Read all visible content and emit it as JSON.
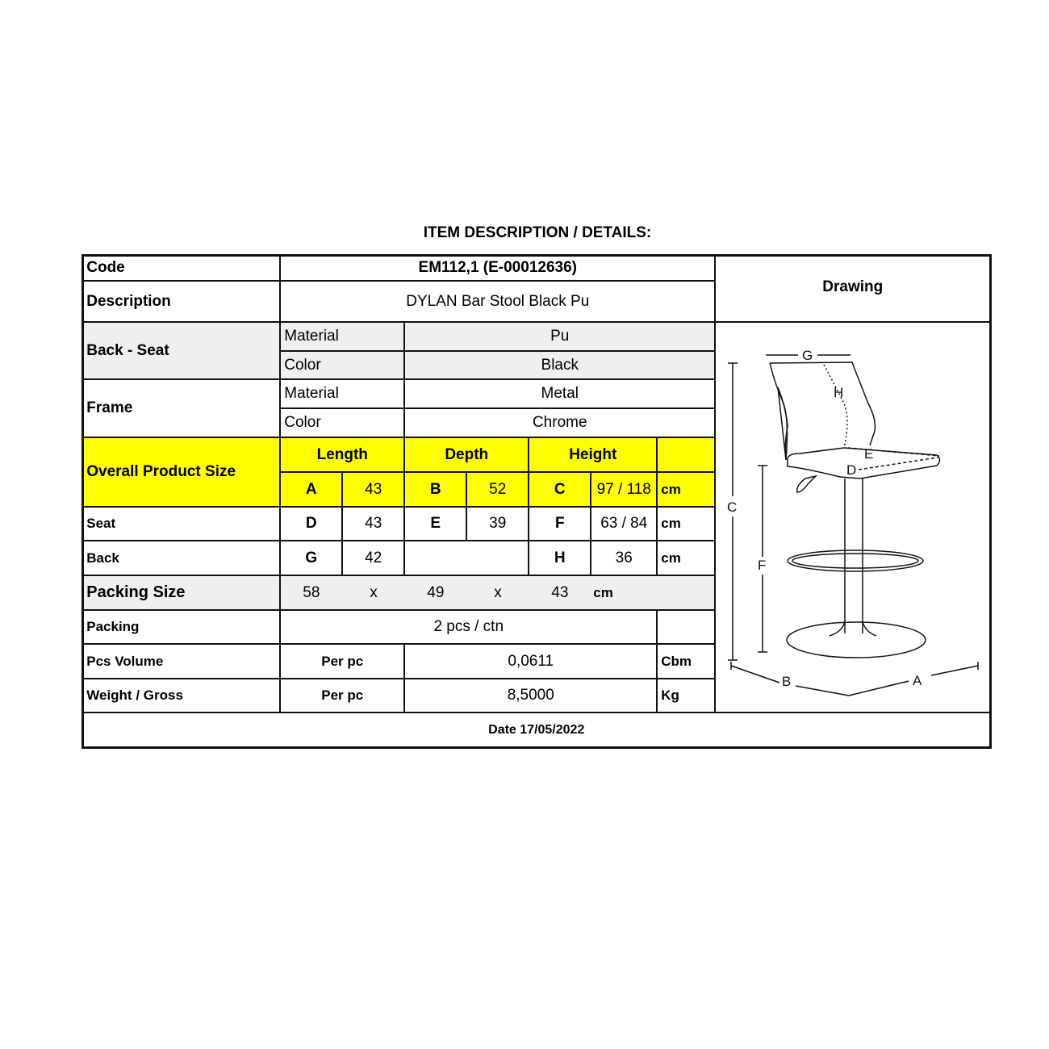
{
  "title": "ITEM DESCRIPTION / DETAILS:",
  "code": {
    "label": "Code",
    "value": "EM112,1 (E-00012636)"
  },
  "description": {
    "label": "Description",
    "value": "DYLAN Bar Stool Black Pu"
  },
  "drawing_label": "Drawing",
  "back_seat": {
    "label": "Back - Seat",
    "material_label": "Material",
    "material": "Pu",
    "color_label": "Color",
    "color": "Black"
  },
  "frame": {
    "label": "Frame",
    "material_label": "Material",
    "material": "Metal",
    "color_label": "Color",
    "color": "Chrome"
  },
  "overall": {
    "label": "Overall Product Size",
    "length": "Length",
    "depth": "Depth",
    "height": "Height",
    "a": "A",
    "a_val": "43",
    "b": "B",
    "b_val": "52",
    "c": "C",
    "c_val": "97 / 118",
    "unit": "cm"
  },
  "seat": {
    "label": "Seat",
    "d": "D",
    "d_val": "43",
    "e": "E",
    "e_val": "39",
    "f": "F",
    "f_val": "63 / 84",
    "unit": "cm"
  },
  "back": {
    "label": "Back",
    "g": "G",
    "g_val": "42",
    "h": "H",
    "h_val": "36",
    "unit": "cm"
  },
  "packing_size": {
    "label": "Packing Size",
    "l": "58",
    "x1": "x",
    "w": "49",
    "x2": "x",
    "h": "43",
    "unit": "cm"
  },
  "packing": {
    "label": "Packing",
    "value": "2 pcs / ctn"
  },
  "volume": {
    "label": "Pcs Volume",
    "per": "Per pc",
    "value": "0,0611",
    "unit": "Cbm"
  },
  "weight": {
    "label": "Weight / Gross",
    "per": "Per pc",
    "value": "8,5000",
    "unit": "Kg"
  },
  "date": "Date 17/05/2022",
  "drawing_labels": {
    "a": "A",
    "b": "B",
    "c": "C",
    "d": "D",
    "e": "E",
    "f": "F",
    "g": "G",
    "h": "H"
  },
  "colors": {
    "highlight": "#ffff00",
    "shade": "#efefef"
  }
}
